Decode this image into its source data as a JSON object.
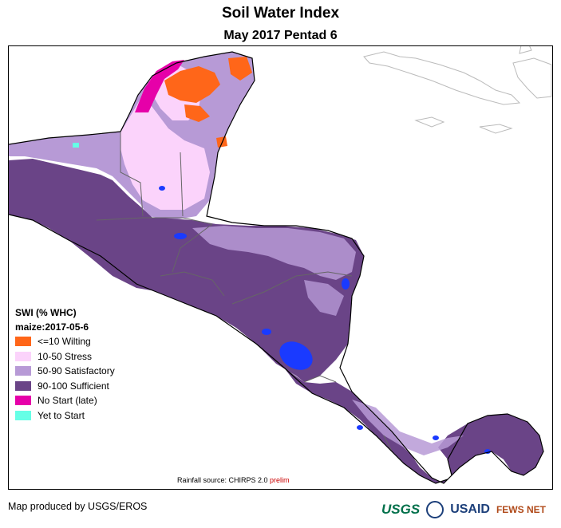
{
  "title": "Soil Water Index",
  "subtitle": "May 2017 Pentad 6",
  "legend": {
    "header1": "SWI (% WHC)",
    "header2": "maize:2017-05-6",
    "items": [
      {
        "label": "<=10 Wilting",
        "color": "#ff6619"
      },
      {
        "label": "10-50 Stress",
        "color": "#fbd3fb"
      },
      {
        "label": "50-90 Satisfactory",
        "color": "#b79ad6"
      },
      {
        "label": "90-100 Sufficient",
        "color": "#6a4487"
      },
      {
        "label": "No Start (late)",
        "color": "#e600a9"
      },
      {
        "label": "Yet to Start",
        "color": "#66ffe6"
      }
    ]
  },
  "source": {
    "prefix": "Rainfall source: CHIRPS 2.0 ",
    "prelim": "prelim"
  },
  "footer": "Map produced by USGS/EROS",
  "logos": {
    "usgs": "USGS",
    "usaid": "USAID",
    "fews": "FEWS NET"
  },
  "colors": {
    "water": "#1a3aff",
    "border": "#666666",
    "coast": "#000000"
  }
}
